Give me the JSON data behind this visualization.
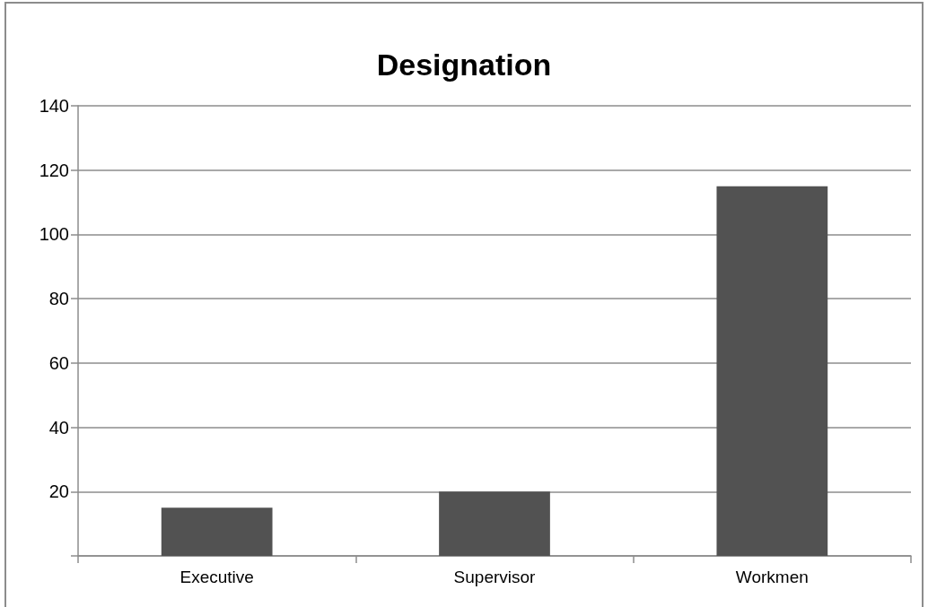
{
  "chart_data": {
    "type": "bar",
    "title": "Designation",
    "categories": [
      "Executive",
      "Supervisor",
      "Workmen"
    ],
    "values": [
      15,
      20,
      115
    ],
    "color": "#525252",
    "ylim": [
      0,
      140
    ],
    "yticks": [
      {
        "value": 0,
        "label": null
      },
      20,
      40,
      60,
      80,
      100,
      120,
      140
    ],
    "grid": "y"
  }
}
